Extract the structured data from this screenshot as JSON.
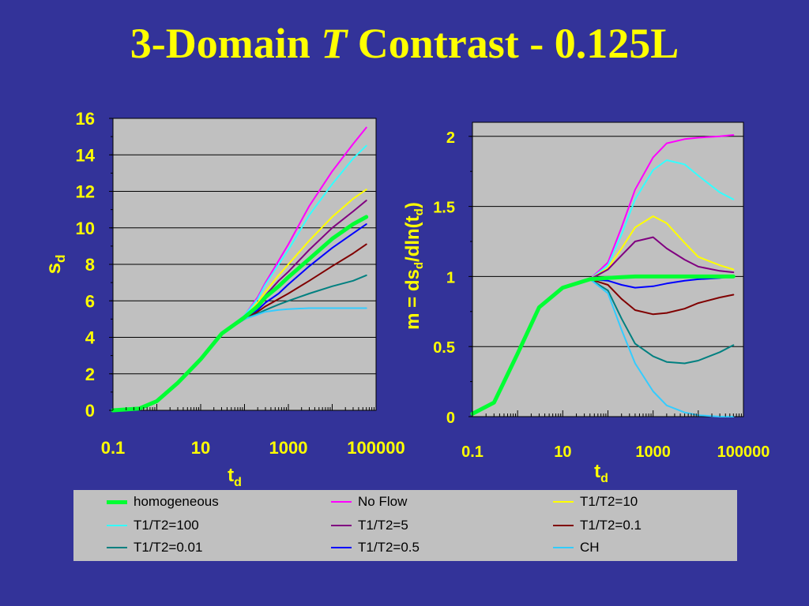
{
  "title": {
    "prefix": "3-Domain",
    "italic": "T",
    "suffix": "Contrast - 0.125L",
    "color": "#FFFF00"
  },
  "colors": {
    "background": "#333399",
    "plot_bg": "#C0C0C0",
    "text": "#FFFF00"
  },
  "chart_data": [
    {
      "type": "line",
      "xlabel": "td",
      "xlabel_sub": "d",
      "xlabel_main": "t",
      "ylabel": "sd",
      "ylabel_main": "s",
      "ylabel_sub": "d",
      "x_scale": "log",
      "xlim": [
        0.1,
        100000
      ],
      "ylim": [
        0,
        16
      ],
      "xticks": [
        0.1,
        10,
        1000,
        100000
      ],
      "xtick_labels": [
        "0.1",
        "10",
        "1000",
        "100000"
      ],
      "yticks": [
        0,
        2,
        4,
        6,
        8,
        10,
        12,
        14,
        16
      ],
      "ytick_labels": [
        "0",
        "2",
        "4",
        "6",
        "8",
        "10",
        "12",
        "14",
        "16"
      ],
      "grid": "horizontal",
      "series": [
        {
          "name": "No Flow",
          "color": "#FF00FF",
          "width": 2,
          "x": [
            0.1,
            0.4,
            1,
            3,
            10,
            30,
            100,
            200,
            300,
            600,
            1000,
            3000,
            10000,
            30000,
            60000
          ],
          "y": [
            0,
            0.1,
            0.5,
            1.5,
            2.8,
            4.2,
            5.2,
            6.2,
            7.0,
            8.2,
            9.1,
            11.2,
            13.1,
            14.6,
            15.5
          ]
        },
        {
          "name": "T1/T2=100",
          "color": "#33FFFF",
          "width": 2,
          "x": [
            0.1,
            0.4,
            1,
            3,
            10,
            30,
            100,
            200,
            300,
            600,
            1000,
            3000,
            10000,
            30000,
            60000
          ],
          "y": [
            0,
            0.1,
            0.5,
            1.5,
            2.8,
            4.2,
            5.2,
            6.1,
            6.9,
            8.0,
            8.8,
            10.7,
            12.4,
            13.8,
            14.5
          ]
        },
        {
          "name": "T1/T2=10",
          "color": "#FFFF00",
          "width": 2,
          "x": [
            0.1,
            0.4,
            1,
            3,
            10,
            30,
            100,
            200,
            300,
            600,
            1000,
            3000,
            10000,
            30000,
            60000
          ],
          "y": [
            0,
            0.1,
            0.5,
            1.5,
            2.8,
            4.2,
            5.1,
            5.9,
            6.5,
            7.4,
            8.0,
            9.3,
            10.6,
            11.6,
            12.1
          ]
        },
        {
          "name": "T1/T2=5",
          "color": "#800080",
          "width": 2,
          "x": [
            0.1,
            0.4,
            1,
            3,
            10,
            30,
            100,
            200,
            300,
            600,
            1000,
            3000,
            10000,
            30000,
            60000
          ],
          "y": [
            0,
            0.1,
            0.5,
            1.5,
            2.8,
            4.2,
            5.1,
            5.8,
            6.3,
            7.1,
            7.6,
            8.8,
            10.0,
            10.9,
            11.5
          ]
        },
        {
          "name": "T1/T2=0.5",
          "color": "#0000FF",
          "width": 2,
          "x": [
            0.1,
            0.4,
            1,
            3,
            10,
            30,
            100,
            200,
            300,
            600,
            1000,
            3000,
            10000,
            30000,
            60000
          ],
          "y": [
            0,
            0.1,
            0.5,
            1.5,
            2.8,
            4.2,
            5.0,
            5.5,
            5.9,
            6.4,
            6.9,
            7.9,
            8.9,
            9.7,
            10.2
          ]
        },
        {
          "name": "T1/T2=0.1",
          "color": "#800000",
          "width": 2,
          "x": [
            0.1,
            0.4,
            1,
            3,
            10,
            30,
            100,
            200,
            300,
            600,
            1000,
            3000,
            10000,
            30000,
            60000
          ],
          "y": [
            0,
            0.1,
            0.5,
            1.5,
            2.8,
            4.2,
            5.0,
            5.4,
            5.7,
            6.1,
            6.4,
            7.1,
            7.9,
            8.6,
            9.1
          ]
        },
        {
          "name": "T1/T2=0.01",
          "color": "#008080",
          "width": 2,
          "x": [
            0.1,
            0.4,
            1,
            3,
            10,
            30,
            100,
            200,
            300,
            600,
            1000,
            3000,
            10000,
            30000,
            60000
          ],
          "y": [
            0,
            0.1,
            0.5,
            1.5,
            2.8,
            4.2,
            5.0,
            5.3,
            5.5,
            5.8,
            6.0,
            6.4,
            6.8,
            7.1,
            7.4
          ]
        },
        {
          "name": "CH",
          "color": "#33CCFF",
          "width": 2,
          "x": [
            0.1,
            0.4,
            1,
            3,
            10,
            30,
            100,
            200,
            300,
            600,
            1000,
            3000,
            10000,
            30000,
            60000
          ],
          "y": [
            0,
            0.1,
            0.5,
            1.5,
            2.8,
            4.2,
            5.0,
            5.25,
            5.4,
            5.5,
            5.55,
            5.6,
            5.6,
            5.6,
            5.6
          ]
        },
        {
          "name": "homogeneous",
          "color": "#00FF33",
          "width": 5,
          "x": [
            0.1,
            0.4,
            1,
            3,
            10,
            30,
            100,
            200,
            300,
            600,
            1000,
            3000,
            10000,
            30000,
            60000
          ],
          "y": [
            0,
            0.1,
            0.5,
            1.5,
            2.8,
            4.2,
            5.1,
            5.7,
            6.2,
            6.8,
            7.3,
            8.3,
            9.4,
            10.2,
            10.6
          ]
        }
      ]
    },
    {
      "type": "line",
      "xlabel": "td",
      "xlabel_main": "t",
      "xlabel_sub": "d",
      "ylabel": "m = dsd/dln(td)",
      "x_scale": "log",
      "xlim": [
        0.1,
        100000
      ],
      "ylim": [
        0,
        2.1
      ],
      "xticks": [
        0.1,
        10,
        1000,
        100000
      ],
      "xtick_labels": [
        "0.1",
        "10",
        "1000",
        "100000"
      ],
      "yticks": [
        0,
        0.5,
        1,
        1.5,
        2
      ],
      "ytick_labels": [
        "0",
        "0.5",
        "1",
        "1.5",
        "2"
      ],
      "grid": "horizontal",
      "series": [
        {
          "name": "No Flow",
          "color": "#FF00FF",
          "width": 2,
          "x": [
            0.1,
            0.3,
            1,
            3,
            10,
            40,
            100,
            200,
            400,
            1000,
            2000,
            5000,
            10000,
            30000,
            60000
          ],
          "y": [
            0.02,
            0.1,
            0.45,
            0.78,
            0.92,
            0.98,
            1.1,
            1.35,
            1.62,
            1.85,
            1.95,
            1.98,
            1.99,
            2.0,
            2.01
          ]
        },
        {
          "name": "T1/T2=100",
          "color": "#33FFFF",
          "width": 2,
          "x": [
            0.1,
            0.3,
            1,
            3,
            10,
            40,
            100,
            200,
            400,
            1000,
            2000,
            5000,
            10000,
            30000,
            60000
          ],
          "y": [
            0.02,
            0.1,
            0.45,
            0.78,
            0.92,
            0.98,
            1.08,
            1.3,
            1.55,
            1.76,
            1.83,
            1.8,
            1.72,
            1.6,
            1.55
          ]
        },
        {
          "name": "T1/T2=10",
          "color": "#FFFF00",
          "width": 2,
          "x": [
            0.1,
            0.3,
            1,
            3,
            10,
            40,
            100,
            200,
            400,
            1000,
            2000,
            5000,
            10000,
            30000,
            60000
          ],
          "y": [
            0.02,
            0.1,
            0.45,
            0.78,
            0.92,
            0.98,
            1.06,
            1.2,
            1.35,
            1.43,
            1.38,
            1.24,
            1.14,
            1.08,
            1.05
          ]
        },
        {
          "name": "T1/T2=5",
          "color": "#800080",
          "width": 2,
          "x": [
            0.1,
            0.3,
            1,
            3,
            10,
            40,
            100,
            200,
            400,
            1000,
            2000,
            5000,
            10000,
            30000,
            60000
          ],
          "y": [
            0.02,
            0.1,
            0.45,
            0.78,
            0.92,
            0.98,
            1.05,
            1.15,
            1.25,
            1.28,
            1.2,
            1.12,
            1.07,
            1.04,
            1.03
          ]
        },
        {
          "name": "T1/T2=0.5",
          "color": "#0000FF",
          "width": 2,
          "x": [
            0.1,
            0.3,
            1,
            3,
            10,
            40,
            100,
            200,
            400,
            1000,
            2000,
            5000,
            10000,
            30000,
            60000
          ],
          "y": [
            0.02,
            0.1,
            0.45,
            0.78,
            0.92,
            0.98,
            0.97,
            0.94,
            0.92,
            0.93,
            0.95,
            0.97,
            0.98,
            0.99,
            1.0
          ]
        },
        {
          "name": "T1/T2=0.1",
          "color": "#800000",
          "width": 2,
          "x": [
            0.1,
            0.3,
            1,
            3,
            10,
            40,
            100,
            200,
            400,
            1000,
            2000,
            5000,
            10000,
            30000,
            60000
          ],
          "y": [
            0.02,
            0.1,
            0.45,
            0.78,
            0.92,
            0.98,
            0.94,
            0.84,
            0.76,
            0.73,
            0.74,
            0.77,
            0.81,
            0.85,
            0.87
          ]
        },
        {
          "name": "T1/T2=0.01",
          "color": "#008080",
          "width": 2,
          "x": [
            0.1,
            0.3,
            1,
            3,
            10,
            40,
            100,
            200,
            400,
            1000,
            2000,
            5000,
            10000,
            30000,
            60000
          ],
          "y": [
            0.02,
            0.1,
            0.45,
            0.78,
            0.92,
            0.98,
            0.9,
            0.7,
            0.52,
            0.43,
            0.39,
            0.38,
            0.4,
            0.46,
            0.51
          ]
        },
        {
          "name": "CH",
          "color": "#33CCFF",
          "width": 2,
          "x": [
            0.1,
            0.3,
            1,
            3,
            10,
            40,
            100,
            200,
            400,
            1000,
            2000,
            5000,
            10000,
            30000,
            60000
          ],
          "y": [
            0.02,
            0.1,
            0.45,
            0.78,
            0.92,
            0.98,
            0.88,
            0.62,
            0.38,
            0.18,
            0.08,
            0.03,
            0.01,
            0.0,
            0.0
          ]
        },
        {
          "name": "homogeneous",
          "color": "#00FF33",
          "width": 5,
          "x": [
            0.1,
            0.3,
            1,
            3,
            10,
            40,
            100,
            200,
            400,
            1000,
            2000,
            5000,
            10000,
            30000,
            60000
          ],
          "y": [
            0.02,
            0.1,
            0.45,
            0.78,
            0.92,
            0.98,
            0.99,
            0.995,
            1.0,
            1.0,
            1.0,
            1.0,
            1.0,
            1.0,
            1.0
          ]
        }
      ]
    }
  ],
  "legend": {
    "placement": "bottom",
    "items": [
      {
        "label": "homogeneous",
        "color": "#00FF33",
        "width": 5
      },
      {
        "label": "No Flow",
        "color": "#FF00FF",
        "width": 2
      },
      {
        "label": "T1/T2=10",
        "color": "#FFFF00",
        "width": 2
      },
      {
        "label": "T1/T2=100",
        "color": "#33FFFF",
        "width": 2
      },
      {
        "label": "T1/T2=5",
        "color": "#800080",
        "width": 2
      },
      {
        "label": "T1/T2=0.1",
        "color": "#800000",
        "width": 2
      },
      {
        "label": "T1/T2=0.01",
        "color": "#008080",
        "width": 2
      },
      {
        "label": "T1/T2=0.5",
        "color": "#0000FF",
        "width": 2
      },
      {
        "label": "CH",
        "color": "#33CCFF",
        "width": 2
      }
    ]
  }
}
